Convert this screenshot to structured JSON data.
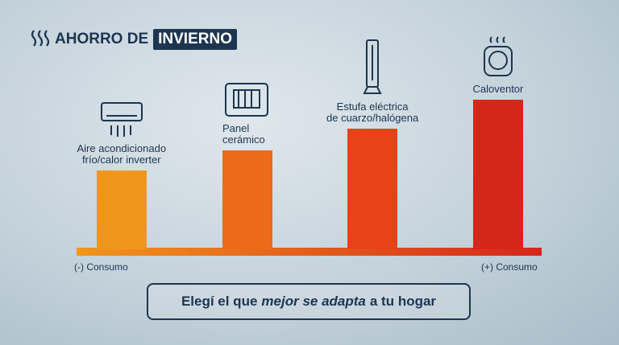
{
  "chart_data": {
    "type": "bar",
    "title": "AHORRO DE",
    "title_highlight": "INVIERNO",
    "categories": [
      "Aire acondicionado\nfrío/calor inverter",
      "Panel\ncerámico",
      "Estufa eléctrica\nde cuarzo/halógena",
      "Caloventor"
    ],
    "values": [
      98,
      123,
      150,
      186
    ],
    "colors": [
      "#f0961c",
      "#ec6a1c",
      "#e5441b",
      "#d5261b"
    ],
    "x_label_low": "(-) Consumo",
    "x_label_high": "(+) Consumo",
    "footer": {
      "before": "Elegí el que",
      "emphasis": "mejor se adapta",
      "after": "a tu hogar"
    }
  }
}
